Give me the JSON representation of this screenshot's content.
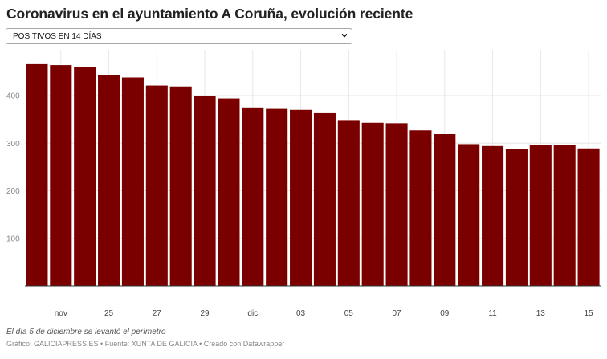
{
  "title": "Coronavirus en el ayuntamiento A Coruña, evolución reciente",
  "selector": {
    "selected": "POSITIVOS EN 14 DÍAS"
  },
  "note": "El día 5 de diciembre se levantó el perímetro",
  "footer": "Gráfico: GALICIAPRESS.ES • Fuente: XUNTA DE GALICIA • Creado con Datawrapper",
  "colors": {
    "bar": "#7a0000",
    "grid": "#e6e6e6",
    "baseline": "#333333"
  },
  "chart_data": {
    "type": "bar",
    "x_tick_labels": [
      "nov",
      "25",
      "27",
      "29",
      "dic",
      "03",
      "05",
      "07",
      "09",
      "11",
      "13",
      "15"
    ],
    "x_tick_bar_index": [
      1,
      3,
      5,
      7,
      9,
      11,
      13,
      15,
      17,
      19,
      21,
      23
    ],
    "values": [
      466,
      464,
      460,
      443,
      438,
      421,
      419,
      400,
      394,
      375,
      372,
      370,
      363,
      347,
      343,
      342,
      327,
      319,
      298,
      294,
      288,
      296,
      297,
      289
    ],
    "yticks": [
      100,
      200,
      300,
      400
    ],
    "ylim": [
      0,
      480
    ],
    "grid": true
  }
}
